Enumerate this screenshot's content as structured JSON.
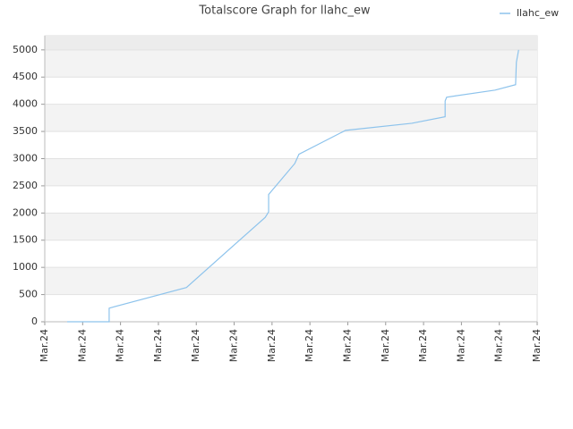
{
  "chart_data": {
    "type": "line",
    "title": "Totalscore Graph for llahc_ew",
    "series": [
      {
        "name": "llahc_ew",
        "color": "#8dc3ec",
        "x": [
          0.59,
          1.7,
          1.7,
          3.74,
          5.82,
          5.91,
          5.91,
          6.6,
          6.71,
          7.94,
          9.69,
          10.57,
          10.57,
          10.61,
          11.89,
          12.43,
          12.45,
          12.51
        ],
        "values": [
          0,
          0,
          250,
          630,
          1920,
          2020,
          2340,
          2910,
          3080,
          3520,
          3650,
          3770,
          4060,
          4130,
          4260,
          4360,
          4770,
          5000
        ]
      }
    ],
    "xlim": [
      0,
      13
    ],
    "xticks": [
      {
        "value": 0,
        "label": "Mar.24"
      },
      {
        "value": 1,
        "label": "Mar.24"
      },
      {
        "value": 2,
        "label": "Mar.24"
      },
      {
        "value": 3,
        "label": "Mar.24"
      },
      {
        "value": 4,
        "label": "Mar.24"
      },
      {
        "value": 5,
        "label": "Mar.24"
      },
      {
        "value": 6,
        "label": "Mar.24"
      },
      {
        "value": 7,
        "label": "Mar.24"
      },
      {
        "value": 8,
        "label": "Mar.24"
      },
      {
        "value": 9,
        "label": "Mar.24"
      },
      {
        "value": 10,
        "label": "Mar.24"
      },
      {
        "value": 11,
        "label": "Mar.24"
      },
      {
        "value": 12,
        "label": "Mar.24"
      },
      {
        "value": 13,
        "label": "Mar.24"
      }
    ],
    "ylim": [
      0,
      5260
    ],
    "yticks": [
      0,
      500,
      1000,
      1500,
      2000,
      2500,
      3000,
      3500,
      4000,
      4500,
      5000
    ],
    "grid": true,
    "legend": "top-right"
  }
}
